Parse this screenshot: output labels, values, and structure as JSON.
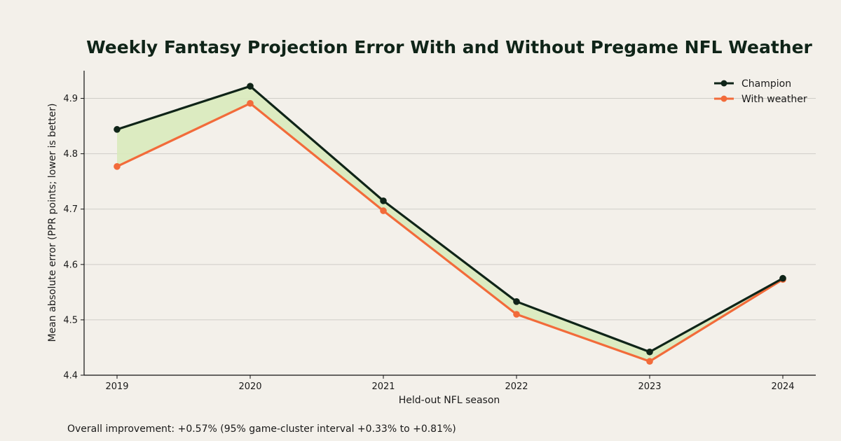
{
  "chart_data": {
    "type": "line",
    "title": "Weekly Fantasy Projection Error With and Without Pregame NFL Weather",
    "xlabel": "Held-out NFL season",
    "ylabel": "Mean absolute error (PPR points; lower is better)",
    "categories": [
      "2019",
      "2020",
      "2021",
      "2022",
      "2023",
      "2024"
    ],
    "ylim": [
      4.4,
      4.95
    ],
    "yticks": [
      "4.4",
      "4.5",
      "4.6",
      "4.7",
      "4.8",
      "4.9"
    ],
    "grid": "horizontal",
    "legend_position": "top-right",
    "series": [
      {
        "name": "Champion",
        "color": "#0f2418",
        "values": [
          4.844,
          4.922,
          4.715,
          4.533,
          4.442,
          4.575
        ]
      },
      {
        "name": "With weather",
        "color": "#f26b3a",
        "values": [
          4.777,
          4.891,
          4.697,
          4.51,
          4.425,
          4.573
        ]
      }
    ],
    "fill_between_color": "#d9eabd",
    "footnote": "Overall improvement: +0.57% (95% game-cluster interval +0.33% to +0.81%)"
  }
}
